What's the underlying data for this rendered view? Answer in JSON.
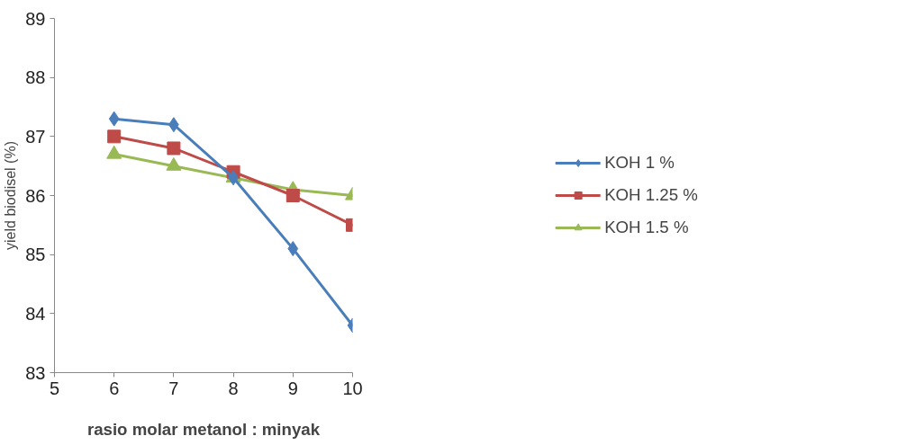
{
  "chart_data": {
    "type": "line",
    "xlabel": "rasio molar metanol : minyak",
    "ylabel": "yield biodisel (%)",
    "x": [
      6,
      7,
      8,
      9,
      10
    ],
    "xlim": [
      5,
      10
    ],
    "xticks": [
      5,
      6,
      7,
      8,
      9,
      10
    ],
    "ylim": [
      83,
      89
    ],
    "yticks": [
      83,
      84,
      85,
      86,
      87,
      88,
      89
    ],
    "grid": false,
    "legend": "right",
    "series": [
      {
        "name": "KOH 1 %",
        "color": "#4a7ebb",
        "marker": "diamond",
        "values": [
          87.3,
          87.2,
          86.3,
          85.1,
          83.8
        ]
      },
      {
        "name": "KOH 1.25 %",
        "color": "#be4b48",
        "marker": "square",
        "values": [
          87.0,
          86.8,
          86.4,
          86.0,
          85.5
        ]
      },
      {
        "name": "KOH 1.5 %",
        "color": "#98b954",
        "marker": "triangle",
        "values": [
          86.7,
          86.5,
          86.3,
          86.1,
          86.0
        ]
      }
    ]
  }
}
